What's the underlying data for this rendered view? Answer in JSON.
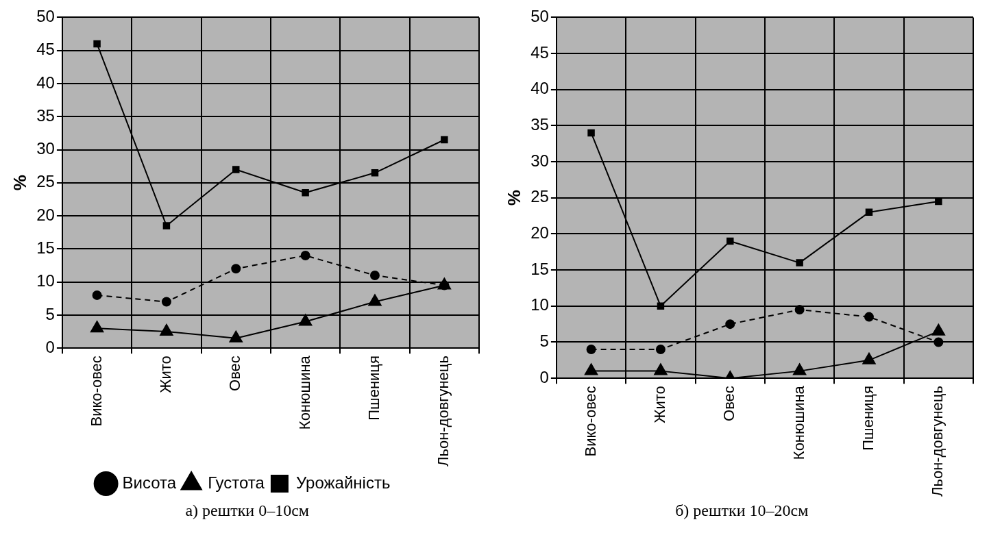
{
  "chart_data": [
    {
      "type": "line",
      "title": "а) рештки 0–10см",
      "ylabel": "%",
      "categories": [
        "Вико-овес",
        "Жито",
        "Овес",
        "Конюшина",
        "Пшениця",
        "Льон-довгунець"
      ],
      "ylim": [
        0,
        50
      ],
      "yticks": [
        0,
        5,
        10,
        15,
        20,
        25,
        30,
        35,
        40,
        45,
        50
      ],
      "grid": true,
      "legend": "bottom",
      "series": [
        {
          "name": "Висота",
          "color": "#000000",
          "marker": "circle",
          "line_style": "dashed",
          "values": [
            8,
            7,
            12,
            14,
            11,
            9.5
          ]
        },
        {
          "name": "Густота",
          "color": "#000000",
          "marker": "triangle",
          "line_style": "solid",
          "values": [
            3,
            2.5,
            1.5,
            4,
            7,
            9.5
          ]
        },
        {
          "name": "Урожайність",
          "color": "#000000",
          "marker": "square",
          "line_style": "solid",
          "values": [
            46,
            18.5,
            27,
            23.5,
            26.5,
            31.5
          ]
        }
      ]
    },
    {
      "type": "line",
      "title": "б) рештки 10–20см",
      "ylabel": "%",
      "categories": [
        "Вико-овес",
        "Жито",
        "Овес",
        "Конюшина",
        "Пшениця",
        "Льон-довгунець"
      ],
      "ylim": [
        0,
        50
      ],
      "yticks": [
        0,
        5,
        10,
        15,
        20,
        25,
        30,
        35,
        40,
        45,
        50
      ],
      "grid": true,
      "series": [
        {
          "color": "#000000",
          "marker": "circle",
          "line_style": "dashed",
          "values": [
            4,
            4,
            7.5,
            9.5,
            8.5,
            5
          ]
        },
        {
          "color": "#000000",
          "marker": "triangle",
          "line_style": "solid",
          "values": [
            1,
            1,
            0,
            1,
            2.5,
            6.5
          ]
        },
        {
          "color": "#000000",
          "marker": "square",
          "line_style": "solid",
          "values": [
            34,
            10,
            19,
            16,
            23,
            24.5
          ]
        }
      ]
    }
  ]
}
